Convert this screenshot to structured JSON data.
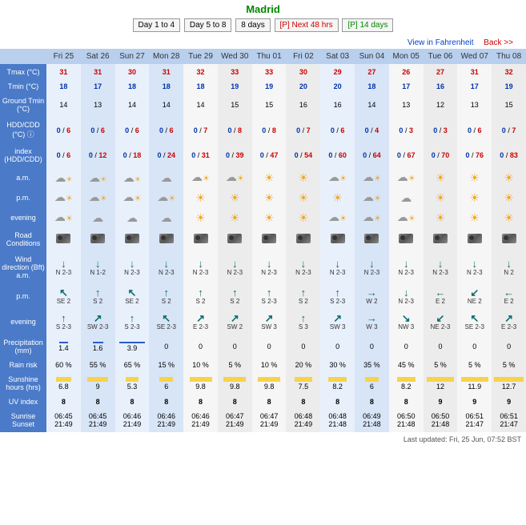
{
  "city": "Madrid",
  "tabs": [
    "Day 1 to 4",
    "Day 5 to 8",
    "8 days",
    "[P] Next 48 hrs",
    "[P] 14 days"
  ],
  "topbar": {
    "fahrenheit": "View in Fahrenheit",
    "back": "Back >>"
  },
  "days": [
    "Fri 25",
    "Sat 26",
    "Sun 27",
    "Mon 28",
    "Tue 29",
    "Wed 30",
    "Thu 01",
    "Fri 02",
    "Sat 03",
    "Sun 04",
    "Mon 05",
    "Tue 06",
    "Wed 07",
    "Thu 08"
  ],
  "rows": {
    "tmax": {
      "label": "Tmax (°C)",
      "vals": [
        31,
        31,
        30,
        31,
        32,
        33,
        33,
        30,
        29,
        27,
        26,
        27,
        31,
        32
      ],
      "cls": "red"
    },
    "tmin": {
      "label": "Tmin (°C)",
      "vals": [
        18,
        17,
        18,
        18,
        18,
        19,
        19,
        20,
        20,
        18,
        17,
        16,
        17,
        19
      ],
      "cls": "blue"
    },
    "gtmin": {
      "label": "Ground Tmin (°C)",
      "vals": [
        14,
        13,
        14,
        14,
        14,
        15,
        15,
        16,
        16,
        14,
        13,
        12,
        13,
        15
      ]
    },
    "hdd": {
      "label": "HDD/CDD (°C) ⓘ",
      "a": [
        0,
        0,
        0,
        0,
        0,
        0,
        0,
        0,
        0,
        0,
        0,
        0,
        0,
        0
      ],
      "b": [
        6,
        6,
        6,
        6,
        7,
        8,
        8,
        7,
        6,
        4,
        3,
        3,
        6,
        7
      ]
    },
    "idx": {
      "label": "index (HDD/CDD)",
      "a": [
        0,
        0,
        0,
        0,
        0,
        0,
        0,
        0,
        0,
        0,
        0,
        0,
        0,
        0
      ],
      "b": [
        6,
        12,
        18,
        24,
        31,
        39,
        47,
        54,
        60,
        64,
        67,
        70,
        76,
        83
      ]
    },
    "am": {
      "label": "a.m.",
      "icons": [
        "rain",
        "rain",
        "rain",
        "cloud",
        "part",
        "part",
        "sun",
        "sun",
        "part",
        "part",
        "part",
        "sun",
        "sun",
        "sun"
      ]
    },
    "pm": {
      "label": "p.m.",
      "icons": [
        "part",
        "part",
        "part",
        "part",
        "sun",
        "sun",
        "sun",
        "sun",
        "sun",
        "part",
        "cloud",
        "sun",
        "sun",
        "sun"
      ]
    },
    "ev": {
      "label": "evening",
      "icons": [
        "part",
        "cloud",
        "cloud",
        "cloud",
        "sun",
        "sun",
        "sun",
        "sun",
        "part",
        "part",
        "part",
        "sun",
        "sun",
        "sun"
      ]
    },
    "road": {
      "label": "Road Conditions"
    },
    "wdir": {
      "label": "Wind direction (Bft) a.m.",
      "arr": [
        "↓",
        "↓",
        "↓",
        "↓",
        "↓",
        "↓",
        "↓",
        "↓",
        "↓",
        "↓",
        "↓",
        "↓",
        "↓",
        "↓"
      ],
      "txt": [
        "N 2-3",
        "N 1-2",
        "N 2-3",
        "N 2-3",
        "N 2-3",
        "N 2-3",
        "N 2-3",
        "N 2-3",
        "N 2-3",
        "N 2-3",
        "N 2-3",
        "N 2-3",
        "N 2-3",
        "N 2"
      ]
    },
    "wpm": {
      "label": "p.m.",
      "arr": [
        "↖",
        "↑",
        "↖",
        "↑",
        "↑",
        "↑",
        "↑",
        "↑",
        "↑",
        "→",
        "↓",
        "←",
        "↙",
        "←"
      ],
      "txt": [
        "SE 2",
        "S 2",
        "SE 2",
        "S 2",
        "S 2",
        "S 2",
        "S 2-3",
        "S 2",
        "S 2-3",
        "W 2",
        "N 2-3",
        "E 2",
        "NE 2",
        "E 2"
      ]
    },
    "wev": {
      "label": "evening",
      "arr": [
        "↑",
        "↗",
        "↑",
        "↖",
        "↗",
        "↗",
        "↗",
        "↑",
        "↗",
        "→",
        "↘",
        "↙",
        "↖",
        "↗"
      ],
      "txt": [
        "S 2-3",
        "SW 2-3",
        "S 2-3",
        "SE 2-3",
        "E 2-3",
        "SW 2",
        "SW 3",
        "S 3",
        "SW 3",
        "W 3",
        "NW 3",
        "NE 2-3",
        "SE 2-3",
        "E 2-3"
      ]
    },
    "prec": {
      "label": "Precipitation (mm)",
      "vals": [
        1.4,
        1.6,
        3.9,
        0,
        0,
        0,
        0,
        0,
        0,
        0,
        0,
        0,
        0,
        0
      ]
    },
    "rain": {
      "label": "Rain risk",
      "vals": [
        "60 %",
        "55 %",
        "65 %",
        "15 %",
        "10 %",
        "5 %",
        "10 %",
        "20 %",
        "30 %",
        "35 %",
        "45 %",
        "5 %",
        "5 %",
        "5 %"
      ]
    },
    "sunh": {
      "label": "Sunshine hours (hrs)",
      "vals": [
        6.8,
        9.0,
        5.3,
        6.0,
        9.8,
        9.8,
        9.8,
        7.5,
        8.2,
        6.0,
        8.2,
        12.0,
        11.9,
        12.7
      ]
    },
    "uv": {
      "label": "UV index",
      "vals": [
        8,
        8,
        8,
        8,
        8,
        8,
        8,
        8,
        8,
        8,
        8,
        9,
        9,
        9
      ]
    },
    "sunrise": {
      "label": "Sunrise Sunset",
      "rise": [
        "06:45",
        "06:45",
        "06:46",
        "06:46",
        "06:46",
        "06:47",
        "06:47",
        "06:48",
        "06:48",
        "06:49",
        "06:50",
        "06:50",
        "06:51",
        "06:51"
      ],
      "set": [
        "21:49",
        "21:49",
        "21:49",
        "21:49",
        "21:49",
        "21:49",
        "21:49",
        "21:49",
        "21:48",
        "21:48",
        "21:48",
        "21:48",
        "21:47",
        "21:47"
      ]
    }
  },
  "footer": "Last updated: Fri, 25 Jun, 07:52 BST"
}
